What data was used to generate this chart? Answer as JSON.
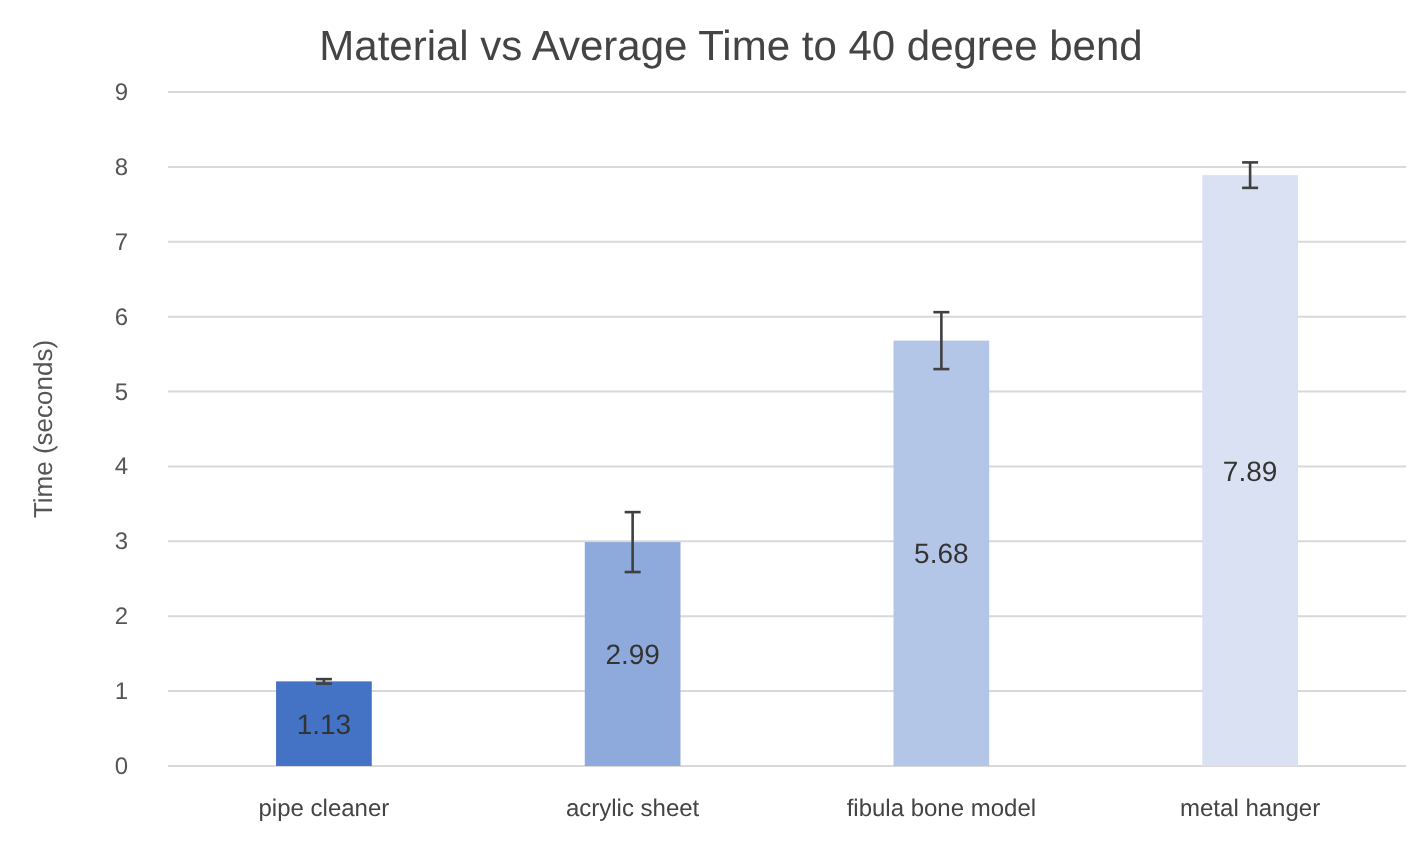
{
  "chart_data": {
    "type": "bar",
    "title": "Material vs Average Time to 40 degree bend",
    "ylabel": "Time (seconds)",
    "categories": [
      "pipe cleaner",
      "acrylic sheet",
      "fibula bone model",
      "metal hanger"
    ],
    "values": [
      1.13,
      2.99,
      5.68,
      7.89
    ],
    "colors": [
      "#4472c4",
      "#8ea9db",
      "#b4c6e7",
      "#d9e1f2"
    ],
    "errors": [
      0.03,
      0.4,
      0.38,
      0.17
    ],
    "ylim": [
      0,
      9
    ],
    "yticks": [
      0,
      1,
      2,
      3,
      4,
      5,
      6,
      7,
      8,
      9
    ],
    "grid": "y",
    "data_labels": true
  }
}
